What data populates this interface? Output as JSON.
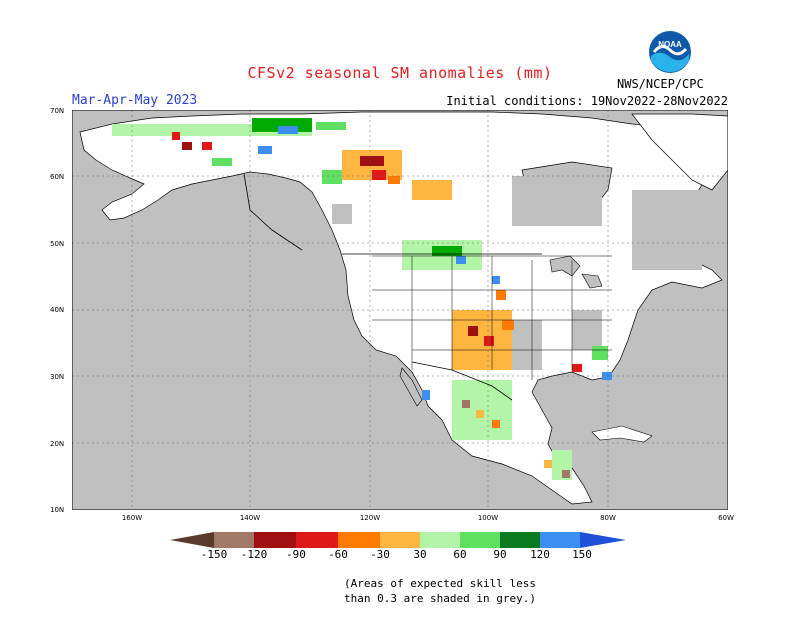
{
  "header": {
    "title": "CFSv2 seasonal SM anomalies (mm)",
    "season": "Mar-Apr-May 2023",
    "initial_conditions": "Initial conditions: 19Nov2022-28Nov2022",
    "agency": "NWS/NCEP/CPC",
    "logo_text": "NOAA"
  },
  "map": {
    "lat_labels": [
      "70N",
      "60N",
      "50N",
      "40N",
      "30N",
      "20N",
      "10N"
    ],
    "lon_labels": [
      "160W",
      "140W",
      "120W",
      "100W",
      "80W",
      "60W"
    ],
    "land_color": "#ffffff",
    "ocean_color": "#c0c0c0",
    "low_skill_color": "#c0c0c0"
  },
  "legend": {
    "ticks": [
      "-150",
      "-120",
      "-90",
      "-60",
      "-30",
      "30",
      "60",
      "90",
      "120",
      "150"
    ],
    "colors": {
      "lt_-150": "#5a3a2a",
      "-150_-120": "#a07868",
      "-120_-90": "#a01010",
      "-90_-60": "#e01818",
      "-60_-30": "#ff7a00",
      "-30_0": "#ffb640",
      "neutral": "#ffffff",
      "30_60": "#b2f5a6",
      "60_90": "#5fe060",
      "90_120": "#00aa00",
      "120_150": "#0a7a1e",
      "gt_150_a": "#3c8ff0",
      "gt_150_b": "#1e50d8"
    }
  },
  "note": {
    "line1": "(Areas of expected skill less",
    "line2": "than 0.3 are shaded in grey.)"
  }
}
